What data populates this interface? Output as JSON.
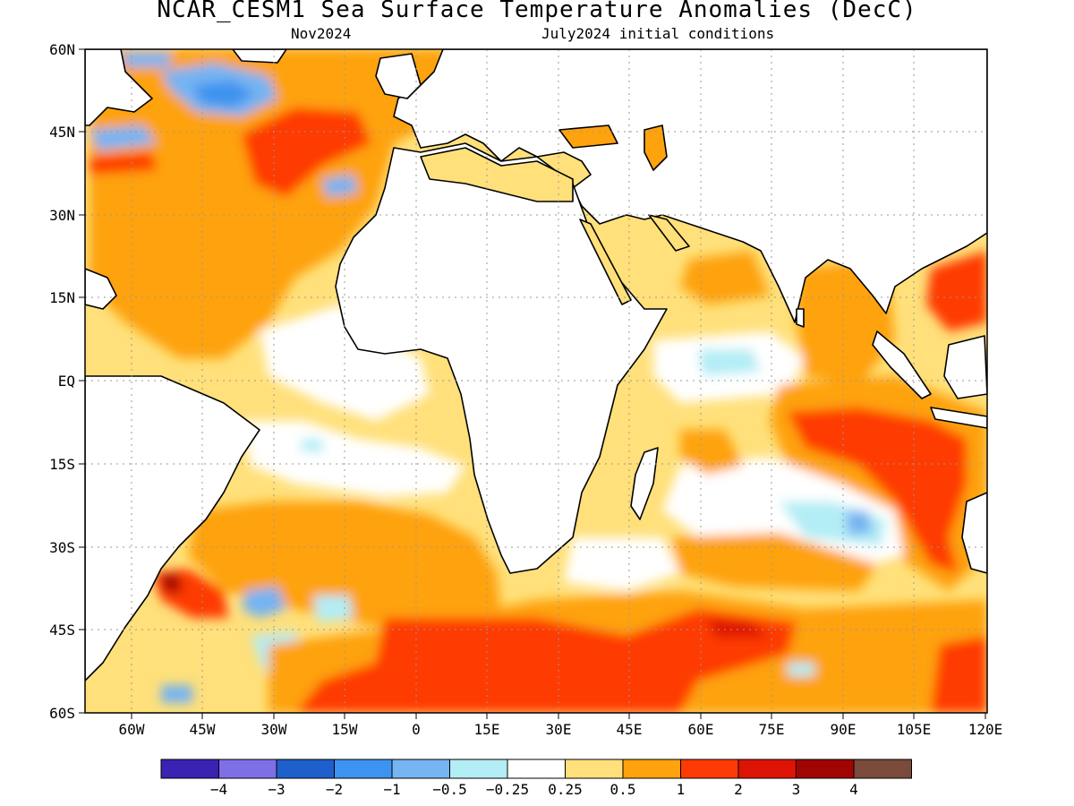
{
  "header": {
    "title": "NCAR_CESM1 Sea Surface Temperature Anomalies (DecC)",
    "valid_month": "Nov2024",
    "init": "July2024 initial conditions"
  },
  "axes": {
    "lat_labels": [
      "60N",
      "45N",
      "30N",
      "15N",
      "EQ",
      "15S",
      "30S",
      "45S",
      "60S"
    ],
    "lon_labels": [
      "60W",
      "45W",
      "30W",
      "15W",
      "0",
      "15E",
      "30E",
      "45E",
      "60E",
      "75E",
      "90E",
      "105E",
      "120E"
    ],
    "lat_range": [
      -60,
      60
    ],
    "lon_range": [
      -70,
      120
    ]
  },
  "colorbar": {
    "colors": [
      "#3a22b3",
      "#7f6fe6",
      "#1f5fcc",
      "#3d93f0",
      "#76b4f2",
      "#b3edf5",
      "#ffffff",
      "#ffe07a",
      "#fea20d",
      "#fe3b05",
      "#dd1405",
      "#a10503",
      "#7a4a3a"
    ],
    "labels": [
      "−4",
      "−3",
      "−2",
      "−1",
      "−0.5",
      "−0.25",
      "0.25",
      "0.5",
      "1",
      "2",
      "3",
      "4"
    ]
  },
  "palette": {
    "land": "#ffffff",
    "coast": "#000000",
    "grid": "#9a9a9a"
  }
}
